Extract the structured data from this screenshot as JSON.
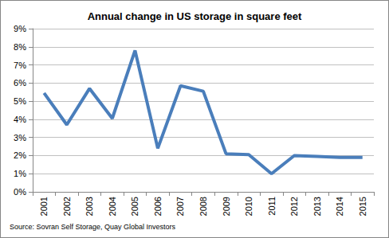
{
  "chart_data": {
    "type": "line",
    "title": "Annual change in US storage in square feet",
    "source": "Source: Sovran Self Storage, Quay Global Investors",
    "categories": [
      "2001",
      "2002",
      "2003",
      "2004",
      "2005",
      "2006",
      "2007",
      "2008",
      "2009",
      "2010",
      "2011",
      "2012",
      "2013",
      "2014",
      "2015"
    ],
    "values": [
      5.45,
      3.7,
      5.7,
      4.05,
      7.8,
      2.4,
      5.85,
      5.55,
      2.1,
      2.05,
      1.0,
      2.0,
      1.95,
      1.9,
      1.9
    ],
    "color": "#4a7ebb",
    "ylim": [
      0,
      9
    ],
    "yticks": [
      {
        "value": 0,
        "label": "0%"
      },
      {
        "value": 1,
        "label": "1%"
      },
      {
        "value": 2,
        "label": "2%"
      },
      {
        "value": 3,
        "label": "3%"
      },
      {
        "value": 4,
        "label": "4%"
      },
      {
        "value": 5,
        "label": "5%"
      },
      {
        "value": 6,
        "label": "6%"
      },
      {
        "value": 7,
        "label": "7%"
      },
      {
        "value": 8,
        "label": "8%"
      },
      {
        "value": 9,
        "label": "9%"
      }
    ],
    "grid": true
  }
}
